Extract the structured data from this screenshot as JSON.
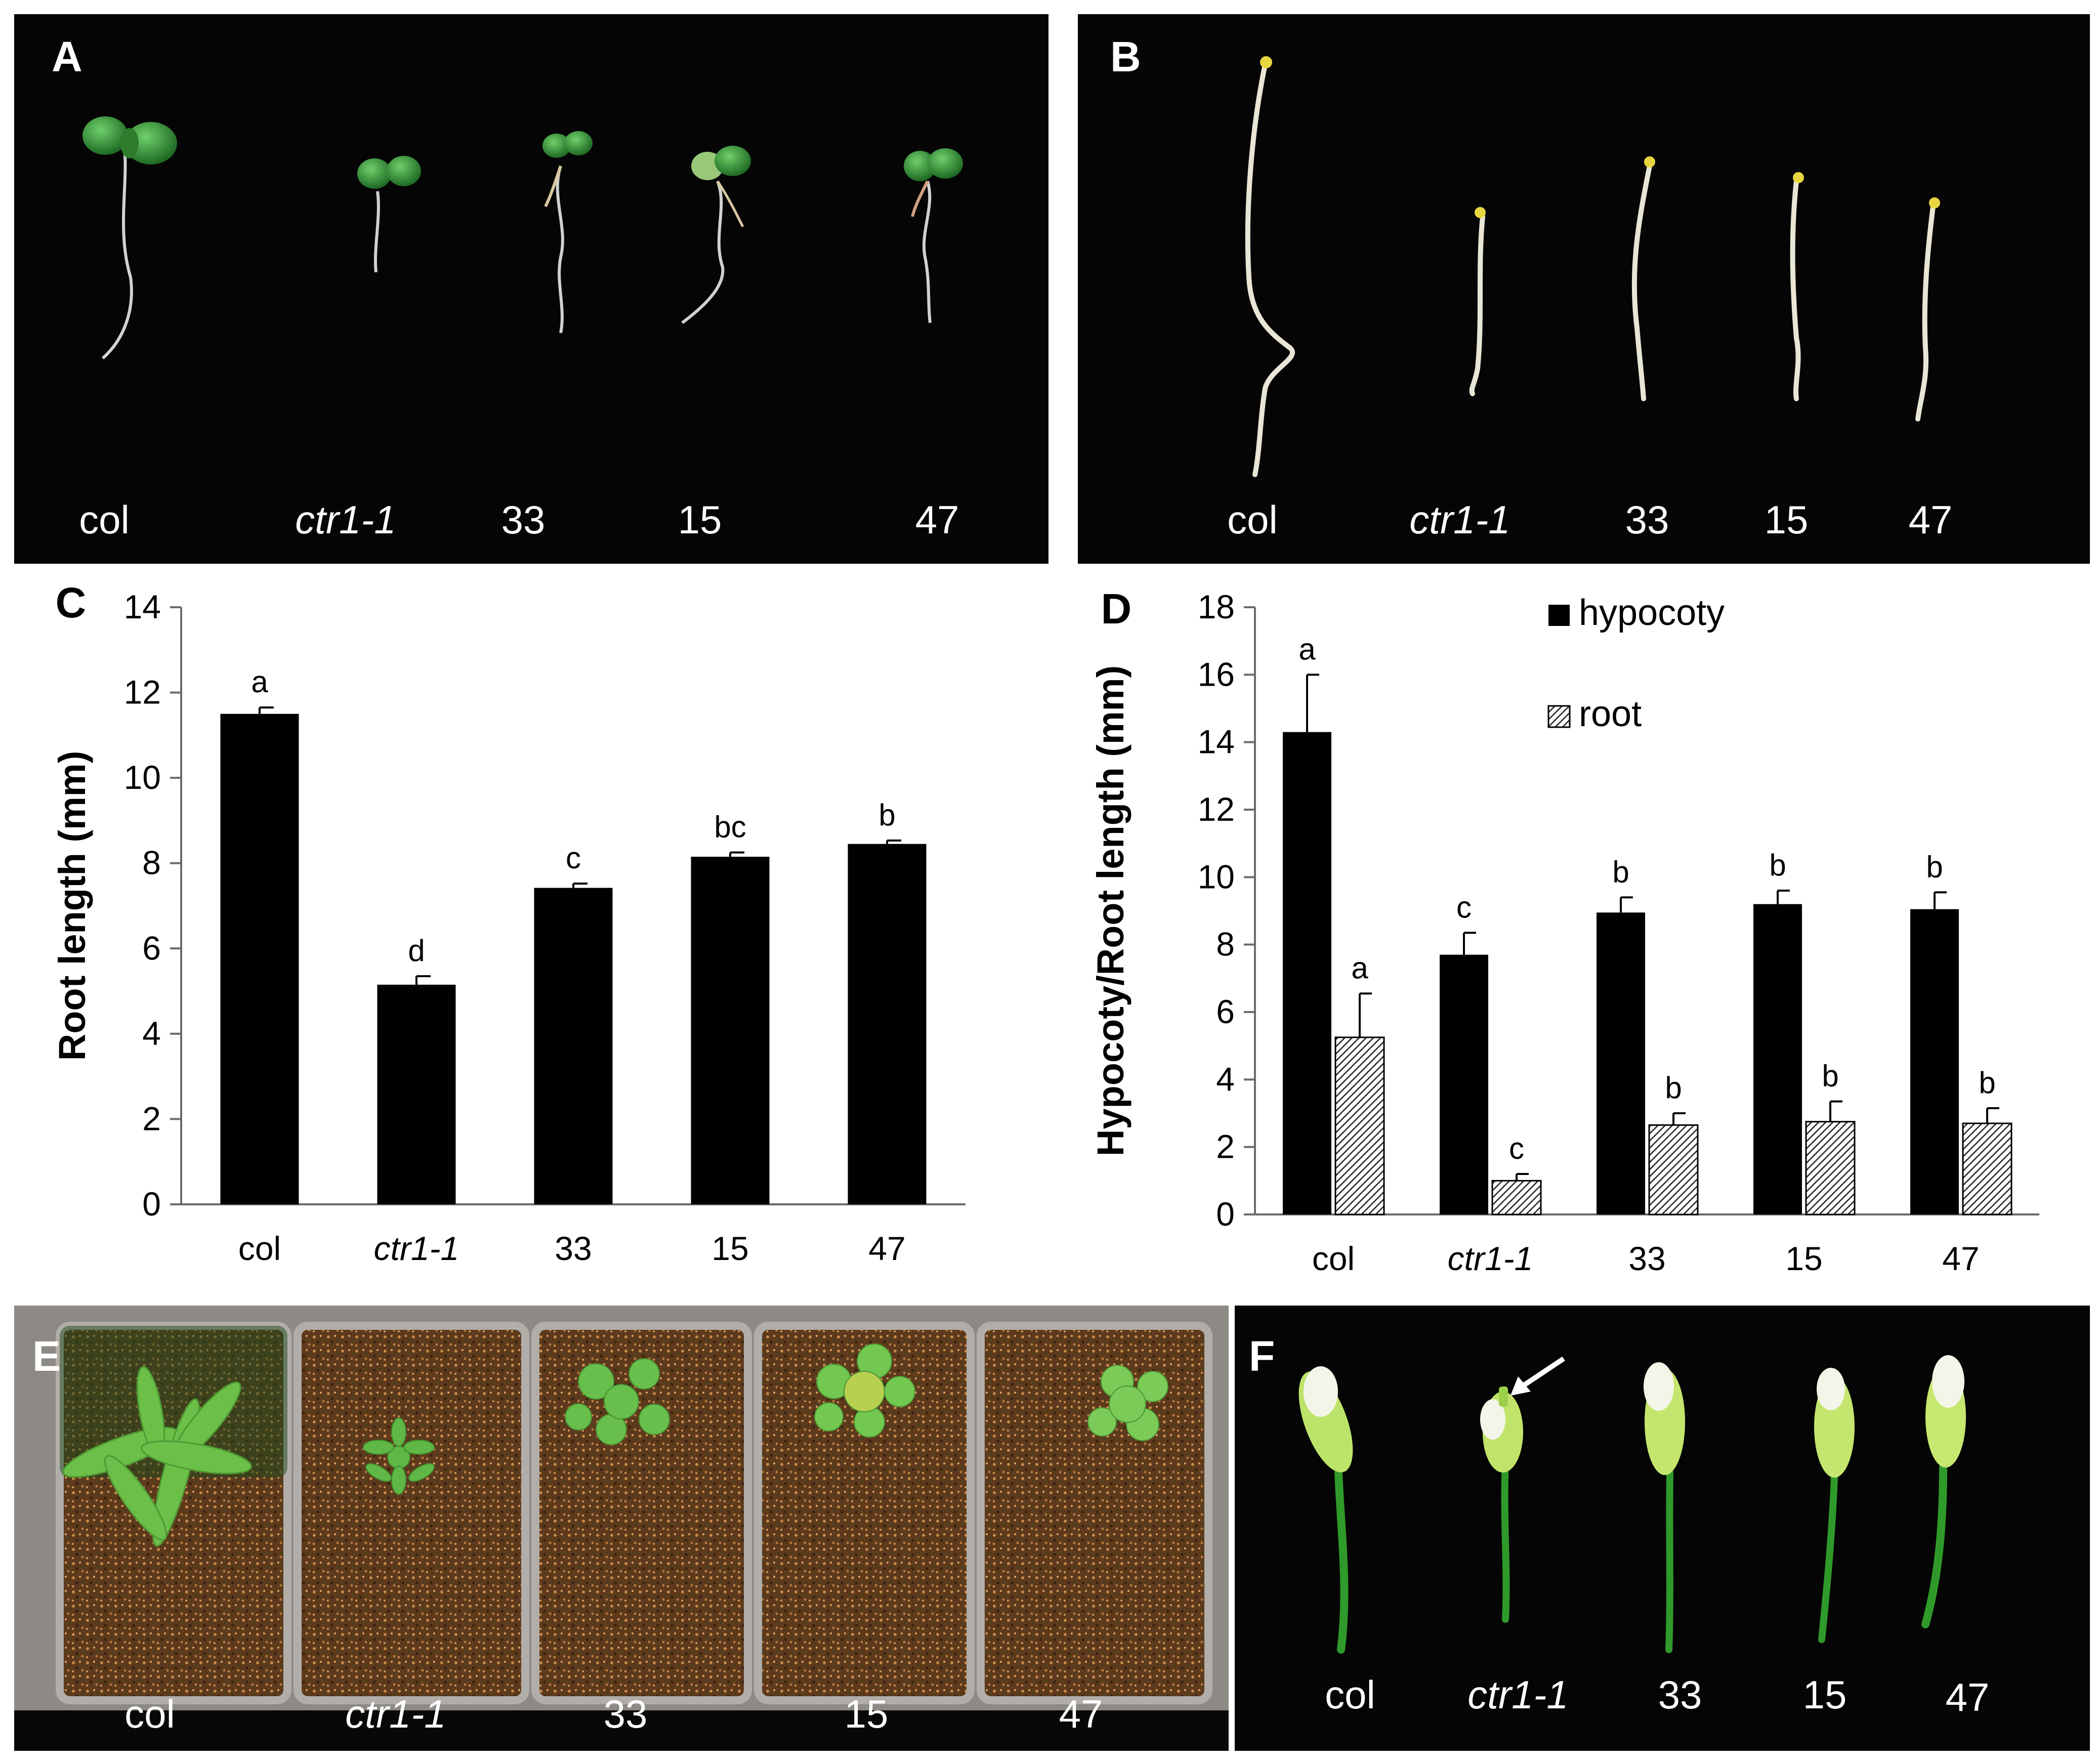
{
  "figure": {
    "panels": {
      "A": {
        "letter": "A",
        "labels": [
          "col",
          "ctr1-1",
          "33",
          "15",
          "47"
        ]
      },
      "B": {
        "letter": "B",
        "labels": [
          "col",
          "ctr1-1",
          "33",
          "15",
          "47"
        ]
      },
      "E": {
        "letter": "E",
        "labels": [
          "col",
          "ctr1-1",
          "33",
          "15",
          "47"
        ]
      },
      "F": {
        "letter": "F",
        "labels": [
          "col",
          "ctr1-1",
          "33",
          "15",
          "47"
        ]
      }
    },
    "colors": {
      "photo_background": "#050505",
      "bar_fill": "#000000",
      "seedling_green": "#3f9a3a",
      "etiolated_white": "#e9e6d6",
      "soil_brown": "#6b4423",
      "tray_gray": "#8d8a86",
      "flower_green": "#52b83a"
    }
  },
  "chart_data": [
    {
      "panel": "C",
      "type": "bar",
      "categories": [
        "col",
        "ctr1-1",
        "33",
        "15",
        "47"
      ],
      "values": [
        11.5,
        5.15,
        7.42,
        8.15,
        8.45
      ],
      "errors": [
        0.15,
        0.2,
        0.1,
        0.1,
        0.08
      ],
      "annotations": [
        "a",
        "d",
        "c",
        "bc",
        "b"
      ],
      "ylabel": "Root length (mm)",
      "ylim": [
        0,
        14
      ],
      "yticks": [
        0,
        2,
        4,
        6,
        8,
        10,
        12,
        14
      ],
      "grid": false
    },
    {
      "panel": "D",
      "type": "bar",
      "categories": [
        "col",
        "ctr1-1",
        "33",
        "15",
        "47"
      ],
      "series": [
        {
          "name": "hypocoty",
          "values": [
            14.3,
            7.7,
            8.95,
            9.2,
            9.05
          ],
          "errors": [
            1.7,
            0.65,
            0.45,
            0.4,
            0.5
          ],
          "annotations": [
            "a",
            "c",
            "b",
            "b",
            "b"
          ]
        },
        {
          "name": "root",
          "values": [
            5.25,
            1.0,
            2.65,
            2.75,
            2.7
          ],
          "errors": [
            1.3,
            0.2,
            0.35,
            0.6,
            0.45
          ],
          "annotations": [
            "a",
            "c",
            "b",
            "b",
            "b"
          ]
        }
      ],
      "ylabel": "Hypocoty/Root length (mm)",
      "ylim": [
        0,
        18
      ],
      "yticks": [
        0,
        2,
        4,
        6,
        8,
        10,
        12,
        14,
        16,
        18
      ],
      "legend_position": "top-right",
      "grid": false
    }
  ],
  "chart_letters": {
    "C": "C",
    "D": "D"
  }
}
